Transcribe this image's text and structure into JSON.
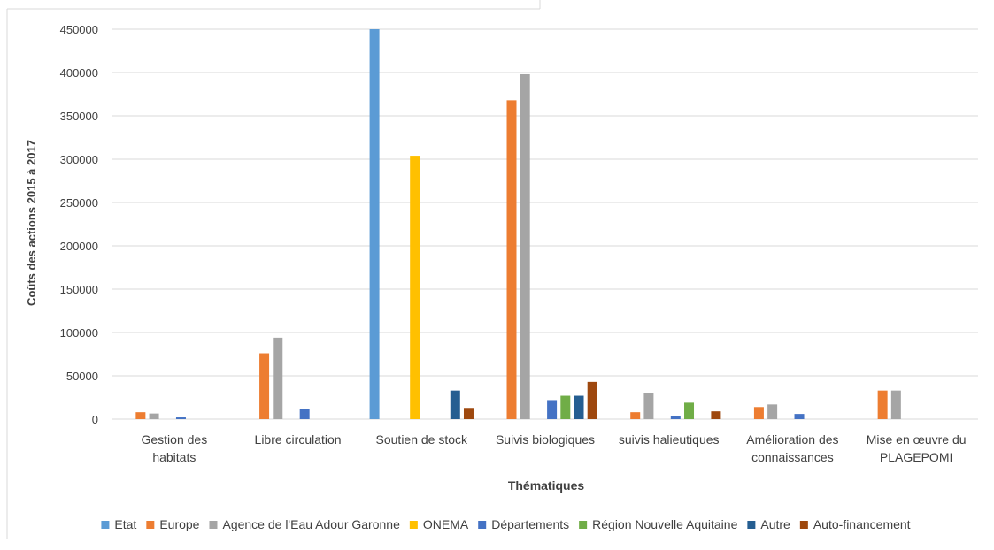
{
  "chart_data": {
    "type": "bar",
    "title": "",
    "xlabel": "Thématiques",
    "ylabel": "Coûts des actions 2015 à 2017",
    "ylim": [
      0,
      450000
    ],
    "yticks": [
      0,
      50000,
      100000,
      150000,
      200000,
      250000,
      300000,
      350000,
      400000,
      450000
    ],
    "grid": true,
    "legend_position": "bottom",
    "categories": [
      [
        "Gestion des",
        "habitats"
      ],
      [
        "Libre circulation"
      ],
      [
        "Soutien de stock"
      ],
      [
        "Suivis biologiques"
      ],
      [
        "suivis halieutiques"
      ],
      [
        "Amélioration des",
        "connaissances"
      ],
      [
        "Mise en œuvre du",
        "PLAGEPOMI"
      ]
    ],
    "series": [
      {
        "name": "Etat",
        "color": "#5B9BD5",
        "values": [
          0,
          0,
          450000,
          0,
          0,
          0,
          0
        ]
      },
      {
        "name": "Europe",
        "color": "#ED7D31",
        "values": [
          8000,
          76000,
          0,
          368000,
          8000,
          14000,
          33000
        ]
      },
      {
        "name": "Agence de l'Eau Adour Garonne",
        "color": "#A5A5A5",
        "values": [
          6500,
          94000,
          0,
          398000,
          30000,
          17000,
          33000
        ]
      },
      {
        "name": "ONEMA",
        "color": "#FFC000",
        "values": [
          0,
          0,
          304000,
          0,
          0,
          0,
          0
        ]
      },
      {
        "name": "Départements",
        "color": "#4472C4",
        "values": [
          2000,
          12000,
          0,
          22000,
          4000,
          6000,
          0
        ]
      },
      {
        "name": "Région Nouvelle Aquitaine",
        "color": "#70AD47",
        "values": [
          0,
          0,
          0,
          27000,
          19000,
          0,
          0
        ]
      },
      {
        "name": "Autre",
        "color": "#255E91",
        "values": [
          0,
          0,
          33000,
          27000,
          0,
          0,
          0
        ]
      },
      {
        "name": "Auto-financement",
        "color": "#9E480E",
        "values": [
          0,
          0,
          13000,
          43000,
          9000,
          0,
          0
        ]
      }
    ]
  }
}
